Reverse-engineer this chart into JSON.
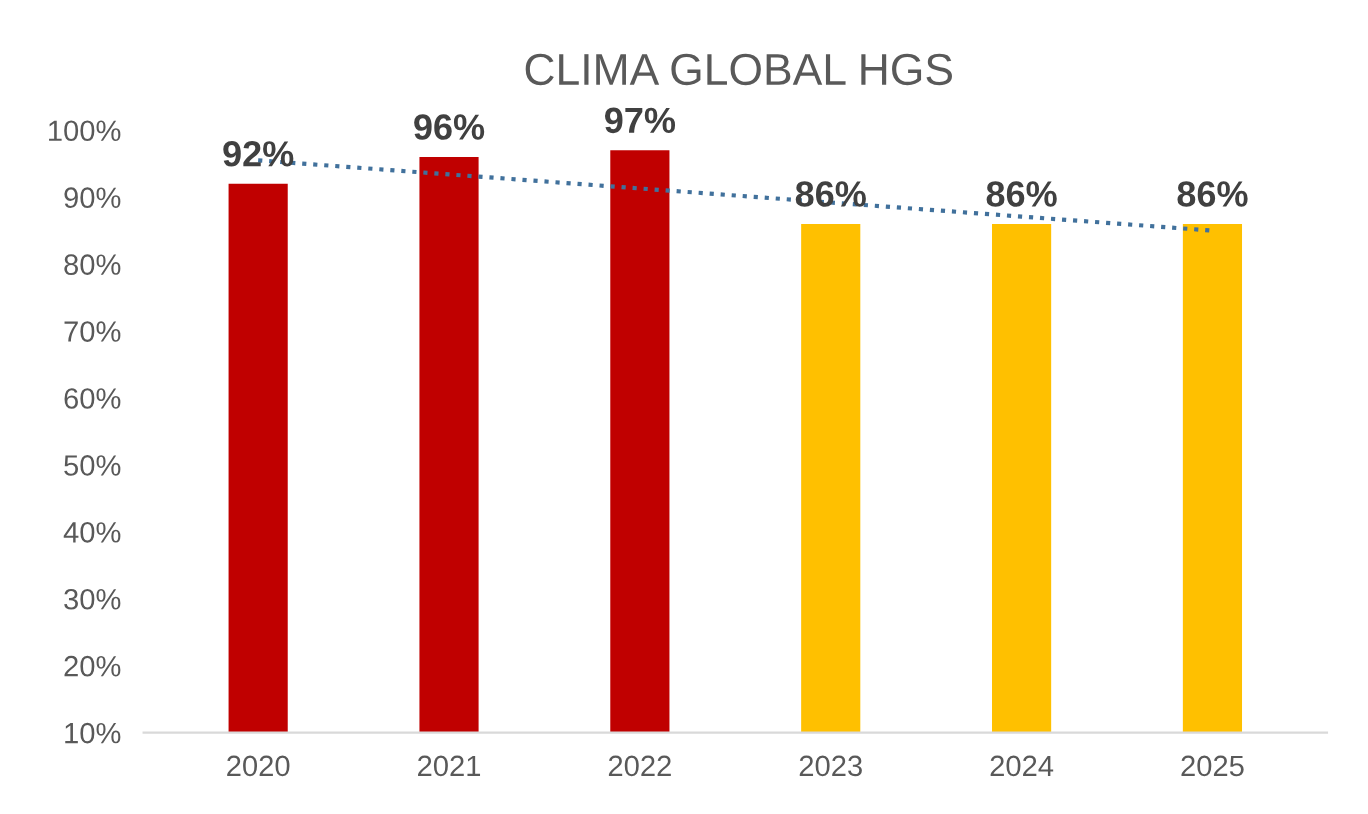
{
  "chart_data": {
    "type": "bar",
    "title": "CLIMA GLOBAL HGS",
    "categories": [
      "2020",
      "2021",
      "2022",
      "2023",
      "2024",
      "2025"
    ],
    "series": [
      {
        "colors": [
          "#c00000",
          "#c00000",
          "#c00000",
          "#ffc000",
          "#ffc000",
          "#ffc000"
        ],
        "values": [
          92,
          96,
          97,
          86,
          86,
          86
        ],
        "value_labels": [
          "92%",
          "96%",
          "97%",
          "86%",
          "86%",
          "86%"
        ]
      },
      {
        "type": "line",
        "color": "#41719c",
        "line_style": "dotted",
        "marker": "none",
        "values": [
          95.5,
          93.4,
          91.3,
          89.2,
          87.1,
          85.0
        ]
      }
    ],
    "ylim": [
      10,
      100
    ],
    "yticks": [
      {
        "value": 10,
        "label": "10%"
      },
      {
        "value": 20,
        "label": "20%"
      },
      {
        "value": 30,
        "label": "30%"
      },
      {
        "value": 40,
        "label": "40%"
      },
      {
        "value": 50,
        "label": "50%"
      },
      {
        "value": 60,
        "label": "60%"
      },
      {
        "value": 70,
        "label": "70%"
      },
      {
        "value": 80,
        "label": "80%"
      },
      {
        "value": 90,
        "label": "90%"
      },
      {
        "value": 100,
        "label": "100%"
      }
    ],
    "grid": false,
    "legend": false
  }
}
